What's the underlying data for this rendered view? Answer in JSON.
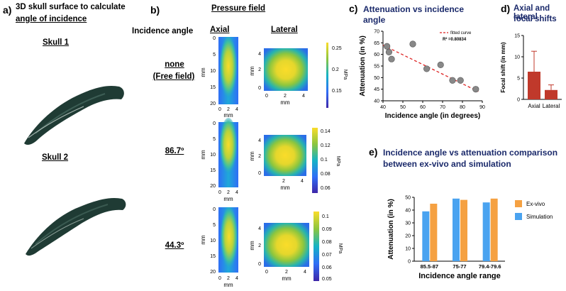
{
  "panel_a": {
    "letter": "a)",
    "title_line1": "3D skull surface to calculate",
    "title_line2": "angle of incidence",
    "skull1_label": "Skull 1",
    "skull2_label": "Skull 2"
  },
  "panel_b": {
    "letter": "b)",
    "title": "Pressure field",
    "incidence_header": "Incidence angle",
    "axial_header": "Axial",
    "lateral_header": "Lateral",
    "rows": [
      {
        "angle_line1": "none",
        "angle_line2": "(Free field)",
        "axial_yticks": [
          "0",
          "5",
          "10",
          "15",
          "20"
        ],
        "axial_xticks": [
          "0",
          "2",
          "4"
        ],
        "axial_ylabel": "mm",
        "axial_xlabel": "mm",
        "lateral_ticks": [
          "0",
          "2",
          "4"
        ],
        "lateral_yticks": [
          "4",
          "2",
          "0"
        ],
        "lateral_ylabel": "mm",
        "lateral_xlabel": "mm",
        "colorbar_ticks": [
          "0.25",
          "0.2",
          "0.15"
        ],
        "colorbar_unit": "MPa"
      },
      {
        "angle_line1": "86.7º",
        "angle_line2": "",
        "axial_yticks": [
          "0",
          "5",
          "10",
          "15",
          "20"
        ],
        "axial_xticks": [
          "0",
          "2",
          "4"
        ],
        "axial_ylabel": "mm",
        "axial_xlabel": "mm",
        "lateral_ticks": [
          "2",
          "4"
        ],
        "lateral_yticks": [
          "4",
          "2",
          "0"
        ],
        "lateral_ylabel": "mm",
        "lateral_xlabel": "mm",
        "colorbar_ticks": [
          "0.14",
          "0.12",
          "0.1",
          "0.08",
          "0.06"
        ],
        "colorbar_unit": "MPa"
      },
      {
        "angle_line1": "44.3º",
        "angle_line2": "",
        "axial_yticks": [
          "0",
          "5",
          "10",
          "15",
          "20"
        ],
        "axial_xticks": [
          "0",
          "2",
          "4"
        ],
        "axial_ylabel": "mm",
        "axial_xlabel": "mm",
        "lateral_ticks": [
          "0",
          "2",
          "4"
        ],
        "lateral_yticks": [
          "4",
          "2",
          "0"
        ],
        "lateral_ylabel": "mm",
        "lateral_xlabel": "mm",
        "colorbar_ticks": [
          "0.1",
          "0.09",
          "0.08",
          "0.07",
          "0.06",
          "0.05"
        ],
        "colorbar_unit": "MPa"
      }
    ]
  },
  "panel_c": {
    "letter": "c)",
    "title_line1": "Attenuation vs incidence",
    "title_line2": "angle"
  },
  "panel_d": {
    "letter": "d)",
    "title_line1": "Axial and lateral",
    "title_line2": "focal shifts"
  },
  "panel_e": {
    "letter": "e)",
    "title_line1": "Incidence angle vs attenuation comparison",
    "title_line2": "between ex-vivo and simulation"
  },
  "colors": {
    "scatter_point": "#888888",
    "fit_line": "#dd2222",
    "bar_red": "#c0392b",
    "ex_vivo": "#f5a142",
    "simulation": "#4aa3f0",
    "skull": "#1f3b34"
  },
  "chart_data": [
    {
      "id": "c",
      "type": "scatter",
      "xlabel": "Incidence angle (in degrees)",
      "ylabel": "Attenuation (in %)",
      "xlim": [
        40,
        90
      ],
      "ylim": [
        40,
        70
      ],
      "xticks": [
        "40",
        "50",
        "60",
        "70",
        "80",
        "90"
      ],
      "yticks": [
        "40",
        "45",
        "50",
        "55",
        "60",
        "65",
        "70"
      ],
      "x": [
        42,
        43,
        44.3,
        55,
        62,
        69,
        75,
        79,
        86.7
      ],
      "y": [
        63.5,
        61,
        58,
        64.5,
        53.8,
        55.5,
        48.8,
        48.8,
        45
      ],
      "fit": {
        "x": [
          40,
          88
        ],
        "y": [
          64,
          44
        ]
      },
      "legend": "fitted curve",
      "r2": "R² =0.80834"
    },
    {
      "id": "d",
      "type": "bar",
      "ylabel": "Focal shift (in mm)",
      "categories": [
        "Axial",
        "Lateral"
      ],
      "values": [
        6.5,
        2.2
      ],
      "errors": [
        4.8,
        1.2
      ],
      "ylim": [
        0,
        15
      ],
      "yticks": [
        "0",
        "5",
        "10",
        "15"
      ]
    },
    {
      "id": "e",
      "type": "bar",
      "xlabel": "Incidence angle range",
      "ylabel": "Attenuation (in %)",
      "categories": [
        "85.5-87",
        "75-77",
        "79.4-79.6"
      ],
      "series": [
        {
          "name": "Simulation",
          "values": [
            39,
            49,
            46
          ]
        },
        {
          "name": "Ex-vivo",
          "values": [
            45,
            48,
            49
          ]
        }
      ],
      "ylim": [
        0,
        50
      ],
      "yticks": [
        "0",
        "10",
        "20",
        "30",
        "40",
        "50"
      ]
    }
  ]
}
